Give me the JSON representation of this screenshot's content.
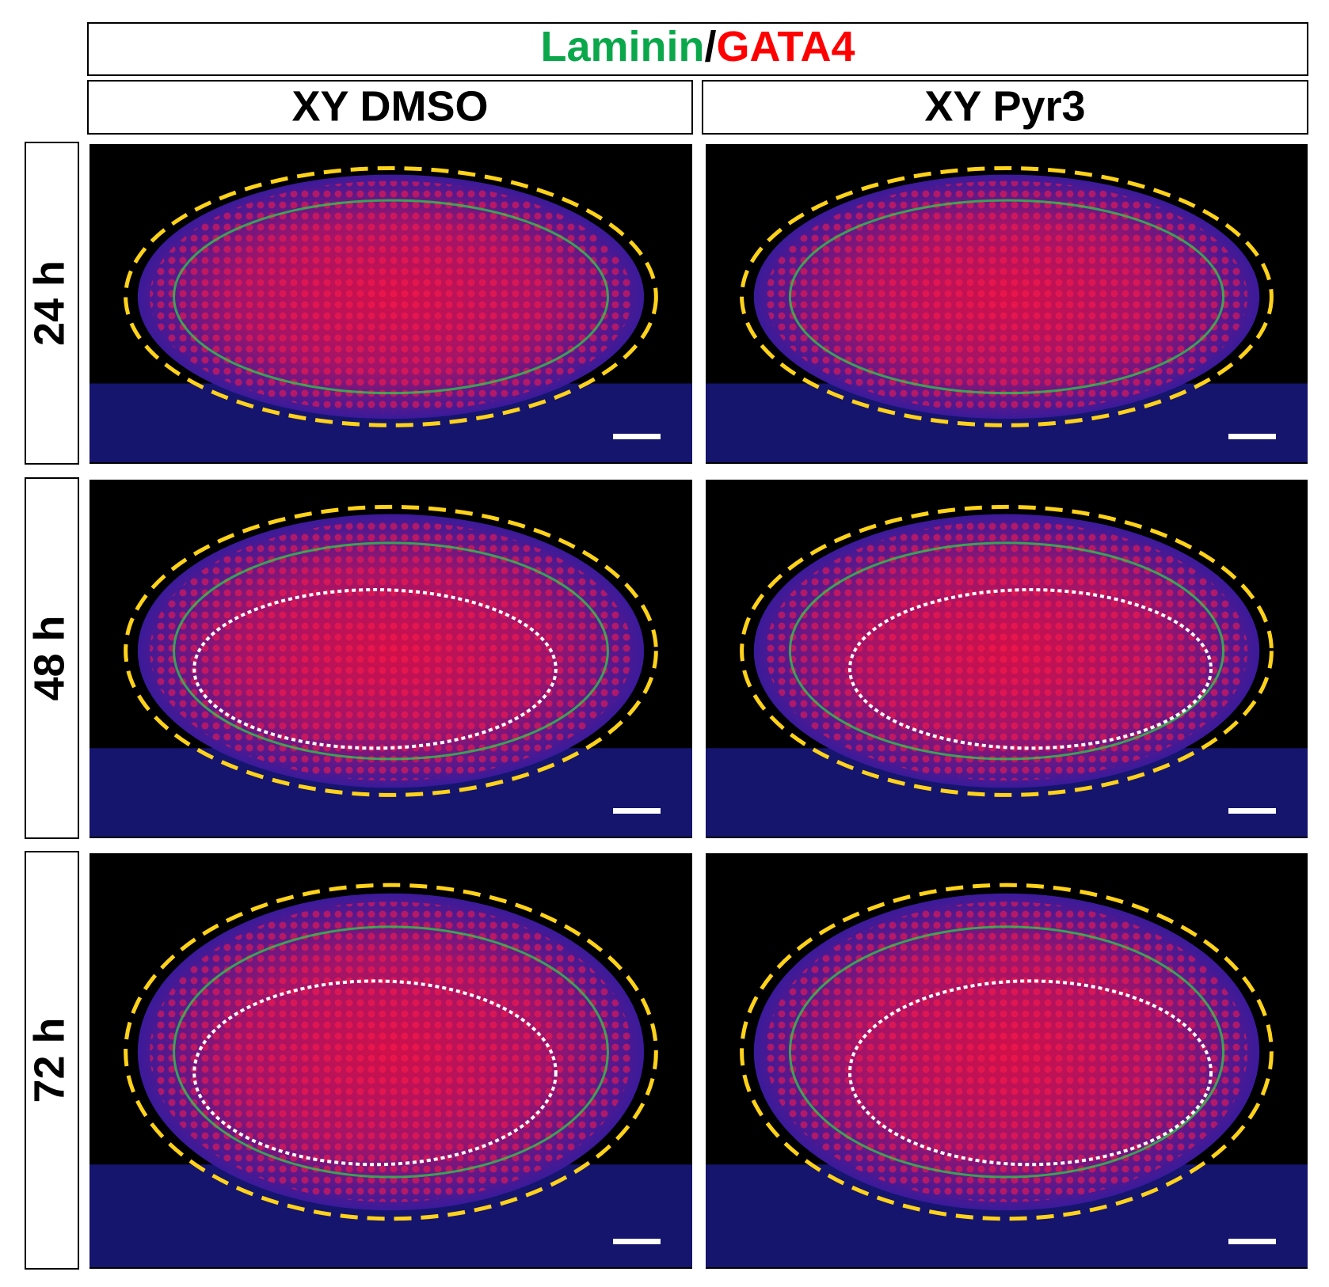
{
  "header": {
    "title_parts": [
      "Laminin",
      "/",
      "GATA4"
    ]
  },
  "columns": [
    "XY DMSO",
    "XY Pyr3"
  ],
  "rows": [
    "24 h",
    "48 h",
    "72 h"
  ]
}
